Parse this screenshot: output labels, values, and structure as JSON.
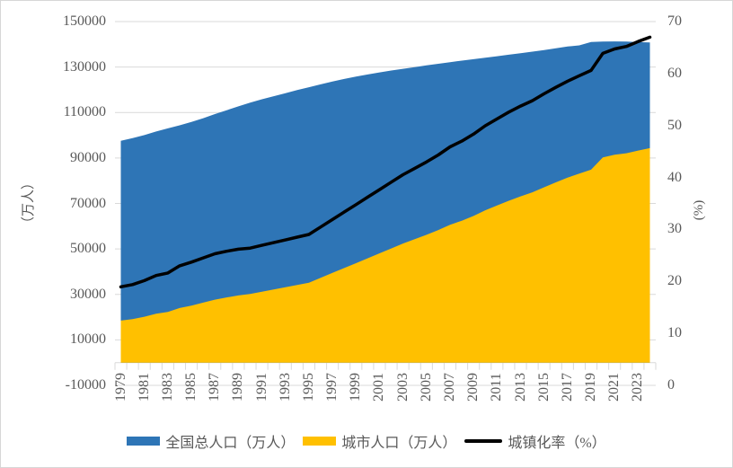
{
  "chart_data": {
    "type": "combo",
    "title": "",
    "x": [
      1979,
      1980,
      1981,
      1982,
      1983,
      1984,
      1985,
      1986,
      1987,
      1988,
      1989,
      1990,
      1991,
      1992,
      1993,
      1994,
      1995,
      1996,
      1997,
      1998,
      1999,
      2000,
      2001,
      2002,
      2003,
      2004,
      2005,
      2006,
      2007,
      2008,
      2009,
      2010,
      2011,
      2012,
      2013,
      2014,
      2015,
      2016,
      2017,
      2018,
      2019,
      2020,
      2021,
      2022,
      2023,
      2024
    ],
    "x_label_interval": 2,
    "x_tick_labels": [
      "1979",
      "1981",
      "1983",
      "1985",
      "1987",
      "1989",
      "1991",
      "1993",
      "1995",
      "1997",
      "1999",
      "2001",
      "2003",
      "2005",
      "2007",
      "2009",
      "2011",
      "2013",
      "2015",
      "2017",
      "2019",
      "2021",
      "2023"
    ],
    "series": [
      {
        "name": "全国总人口（万人）",
        "type": "area",
        "axis": "left",
        "color": "#2E75B6",
        "values": [
          97542,
          98705,
          100072,
          101654,
          103008,
          104357,
          105851,
          107507,
          109300,
          111026,
          112704,
          114333,
          115823,
          117171,
          118517,
          119850,
          121121,
          122389,
          123626,
          124761,
          125786,
          126743,
          127627,
          128453,
          129227,
          129988,
          130756,
          131448,
          132129,
          132802,
          133450,
          134091,
          134735,
          135404,
          136072,
          136782,
          137462,
          138271,
          139008,
          139538,
          141008,
          141212,
          141260,
          141175,
          140967,
          140828
        ]
      },
      {
        "name": "城市人口（万人）",
        "type": "area",
        "axis": "left",
        "color": "#FFC000",
        "values": [
          18495,
          19140,
          20171,
          21480,
          22274,
          24017,
          25094,
          26366,
          27674,
          28661,
          29540,
          30195,
          31203,
          32175,
          33173,
          34169,
          35174,
          37304,
          39449,
          41608,
          43748,
          45906,
          48064,
          50212,
          52376,
          54283,
          56212,
          58288,
          60633,
          62403,
          64512,
          66978,
          69079,
          71182,
          73111,
          74916,
          77116,
          79298,
          81347,
          83137,
          84843,
          90220,
          91425,
          92071,
          93267,
          94350
        ]
      },
      {
        "name": "城镇化率（%）",
        "type": "line",
        "axis": "right",
        "color": "#000000",
        "values": [
          18.96,
          19.39,
          20.16,
          21.13,
          21.62,
          23.01,
          23.71,
          24.52,
          25.32,
          25.81,
          26.21,
          26.41,
          26.94,
          27.46,
          27.99,
          28.51,
          29.04,
          30.48,
          31.91,
          33.35,
          34.78,
          36.22,
          37.66,
          39.09,
          40.53,
          41.76,
          42.99,
          44.34,
          45.89,
          46.99,
          48.34,
          49.95,
          51.27,
          52.57,
          53.73,
          54.77,
          56.1,
          57.35,
          58.52,
          59.58,
          60.6,
          63.89,
          64.72,
          65.22,
          66.16,
          67.0
        ]
      }
    ],
    "left_axis": {
      "title": "（万人）",
      "min": -10000,
      "max": 150000,
      "step": 20000,
      "tick_labels": [
        "150000",
        "130000",
        "110000",
        "90000",
        "70000",
        "50000",
        "30000",
        "10000",
        "-10000"
      ]
    },
    "right_axis": {
      "title": "(%)",
      "min": 0,
      "max": 70,
      "step": 10,
      "tick_labels": [
        "70",
        "60",
        "50",
        "40",
        "30",
        "20",
        "10",
        "0"
      ]
    },
    "gridlines": "horizontal",
    "legend_position": "bottom"
  },
  "legend": {
    "items": [
      {
        "label": "全国总人口（万人）",
        "swatch": "rect",
        "color": "#2E75B6"
      },
      {
        "label": "城市人口（万人）",
        "swatch": "rect",
        "color": "#FFC000"
      },
      {
        "label": "城镇化率（%）",
        "swatch": "line",
        "color": "#000000"
      }
    ]
  },
  "colors": {
    "total_population_area": "#2E75B6",
    "urban_population_area": "#FFC000",
    "urbanization_line": "#000000",
    "gridline": "#D9D9D9",
    "axis_text": "#595959",
    "canvas_border": "#D6D6D6"
  }
}
